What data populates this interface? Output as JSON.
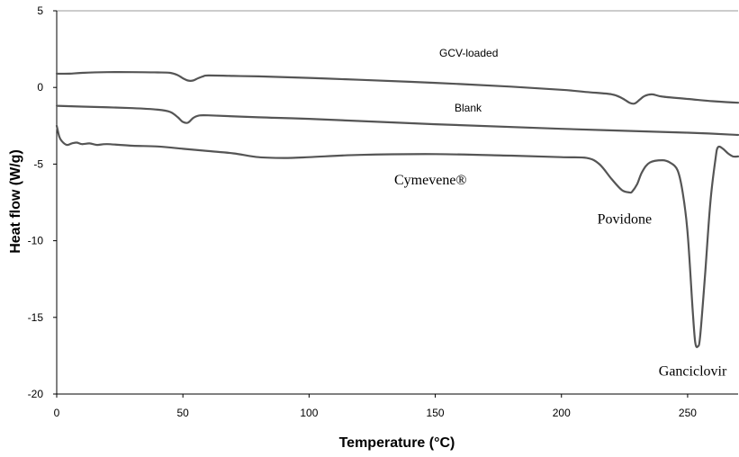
{
  "chart_data": {
    "type": "line",
    "title": "",
    "xlabel": "Temperature (°C)",
    "ylabel": "Heat flow (W/g)",
    "xlim": [
      0,
      270
    ],
    "ylim": [
      -20,
      5
    ],
    "xticks": [
      0,
      50,
      100,
      150,
      200,
      250
    ],
    "yticks": [
      -20,
      -15,
      -10,
      -5,
      0,
      5
    ],
    "grid": false,
    "legend": "none",
    "line_color": "#555555",
    "series": [
      {
        "name": "GCV-loaded",
        "label_font": "sans",
        "x": [
          0,
          5,
          10,
          20,
          30,
          40,
          45,
          48,
          50,
          52,
          54,
          56,
          58,
          60,
          70,
          80,
          100,
          120,
          150,
          180,
          200,
          210,
          220,
          224,
          227,
          229,
          231,
          233,
          236,
          240,
          250,
          260,
          270
        ],
        "y": [
          0.9,
          0.9,
          0.95,
          1.0,
          1.0,
          0.98,
          0.95,
          0.8,
          0.6,
          0.45,
          0.45,
          0.6,
          0.72,
          0.78,
          0.75,
          0.72,
          0.62,
          0.5,
          0.3,
          0.05,
          -0.15,
          -0.3,
          -0.45,
          -0.7,
          -1.0,
          -1.05,
          -0.8,
          -0.55,
          -0.45,
          -0.6,
          -0.75,
          -0.9,
          -1.0
        ]
      },
      {
        "name": "Blank",
        "label_font": "sans",
        "x": [
          0,
          10,
          30,
          40,
          45,
          48,
          50,
          52,
          54,
          56,
          60,
          80,
          100,
          150,
          200,
          250,
          270
        ],
        "y": [
          -1.2,
          -1.25,
          -1.35,
          -1.45,
          -1.6,
          -1.95,
          -2.25,
          -2.3,
          -2.0,
          -1.85,
          -1.82,
          -1.95,
          -2.05,
          -2.4,
          -2.7,
          -2.95,
          -3.1
        ]
      },
      {
        "name": "Cymevene®",
        "label_font": "serif",
        "x": [
          0,
          1,
          2,
          4,
          6,
          8,
          10,
          13,
          16,
          20,
          30,
          40,
          50,
          60,
          70,
          80,
          90,
          100,
          120,
          150,
          180,
          200,
          210,
          215,
          220,
          224,
          227,
          228,
          230,
          232,
          235,
          240,
          243,
          246,
          248,
          250,
          252,
          253,
          254,
          255,
          257,
          259,
          261,
          262,
          264,
          266,
          268,
          270
        ],
        "y": [
          -2.5,
          -3.2,
          -3.5,
          -3.75,
          -3.65,
          -3.6,
          -3.7,
          -3.65,
          -3.75,
          -3.7,
          -3.8,
          -3.85,
          -4.0,
          -4.15,
          -4.3,
          -4.55,
          -4.6,
          -4.55,
          -4.4,
          -4.35,
          -4.45,
          -4.55,
          -4.6,
          -5.0,
          -6.0,
          -6.7,
          -6.85,
          -6.8,
          -6.3,
          -5.5,
          -4.9,
          -4.75,
          -4.9,
          -5.4,
          -6.8,
          -9.5,
          -14.5,
          -16.6,
          -16.9,
          -16.2,
          -12.0,
          -7.5,
          -4.7,
          -3.9,
          -4.0,
          -4.3,
          -4.5,
          -4.5
        ]
      }
    ],
    "annotations": [
      {
        "text": "Povidone",
        "x": 225,
        "y": -8.6,
        "font": "serif"
      },
      {
        "text": "Ganciclovir",
        "x": 252,
        "y": -18.5,
        "font": "serif"
      }
    ]
  }
}
